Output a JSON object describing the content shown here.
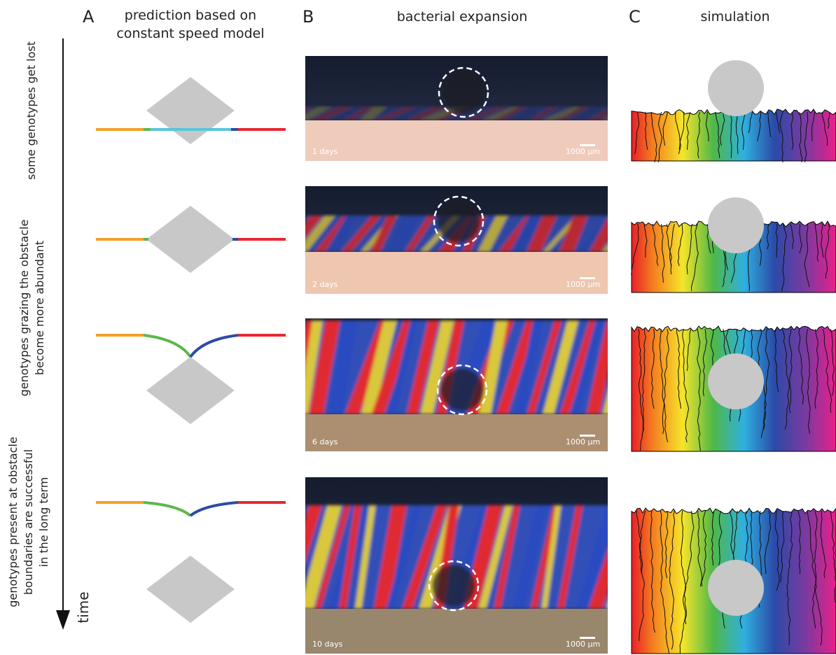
{
  "panels": [
    {
      "letter": "A",
      "heading": [
        "prediction based on",
        "constant speed model"
      ]
    },
    {
      "letter": "B",
      "heading": [
        "bacterial expansion"
      ]
    },
    {
      "letter": "C",
      "heading": [
        "simulation"
      ]
    }
  ],
  "rows": [
    {
      "label": [
        "some genotypes get lost"
      ],
      "day": "1 days",
      "scale": "1000 μm"
    },
    {
      "label": [
        "genotypes grazing the obstacle",
        "become more abundant"
      ],
      "day": "2 days",
      "scale": "1000 μm"
    },
    {
      "label": [
        "genotypes present at obstacle",
        "boundaries are successful",
        "in the long term"
      ],
      "day": "6 days",
      "scale": "1000 μm"
    },
    {
      "label": [],
      "day": "10 days",
      "scale": "1000 μm"
    }
  ],
  "time_label": "time"
}
